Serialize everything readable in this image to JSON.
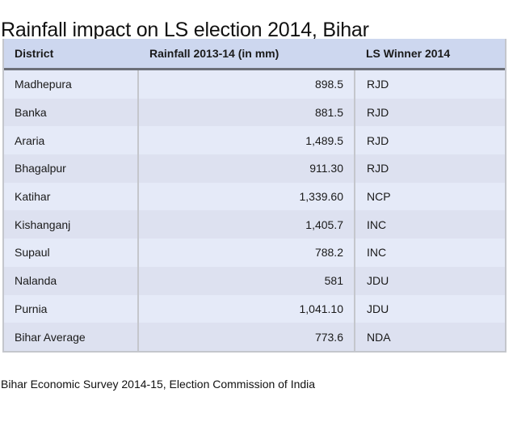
{
  "title": "Rainfall impact on LS election 2014, Bihar",
  "table": {
    "headers": [
      "District",
      "Rainfall 2013-14 (in mm)",
      "LS Winner 2014"
    ],
    "rows": [
      {
        "district": "Madhepura",
        "rainfall": "898.5",
        "winner": "RJD"
      },
      {
        "district": "Banka",
        "rainfall": "881.5",
        "winner": "RJD"
      },
      {
        "district": "Araria",
        "rainfall": "1,489.5",
        "winner": "RJD"
      },
      {
        "district": "Bhagalpur",
        "rainfall": "911.30",
        "winner": "RJD"
      },
      {
        "district": "Katihar",
        "rainfall": "1,339.60",
        "winner": "NCP"
      },
      {
        "district": "Kishanganj",
        "rainfall": "1,405.7",
        "winner": "INC"
      },
      {
        "district": "Supaul",
        "rainfall": "788.2",
        "winner": "INC"
      },
      {
        "district": "Nalanda",
        "rainfall": "581",
        "winner": "JDU"
      },
      {
        "district": "Purnia",
        "rainfall": "1,041.10",
        "winner": "JDU"
      },
      {
        "district": "Bihar Average",
        "rainfall": "773.6",
        "winner": "NDA"
      }
    ]
  },
  "source": "Bihar Economic Survey 2014-15, Election Commission of India",
  "colors": {
    "header_bg": "#cdd7ef",
    "row_odd_bg": "#e5eaf8",
    "row_even_bg": "#dde1f0",
    "header_rule": "#6c6f78",
    "grid": "#c4c6cc"
  }
}
